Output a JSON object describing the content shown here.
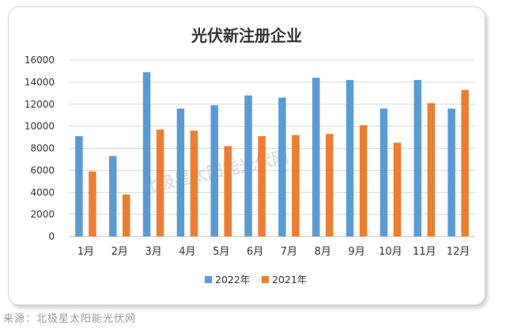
{
  "chart_data": {
    "type": "bar",
    "title": "光伏新注册企业",
    "categories": [
      "1月",
      "2月",
      "3月",
      "4月",
      "5月",
      "6月",
      "7月",
      "8月",
      "9月",
      "10月",
      "11月",
      "12月"
    ],
    "series": [
      {
        "name": "2022年",
        "color": "#5b9bd5",
        "values": [
          9100,
          7300,
          14900,
          11600,
          11900,
          12800,
          12600,
          14400,
          14200,
          11600,
          14200,
          11600
        ]
      },
      {
        "name": "2021年",
        "color": "#ed7d31",
        "values": [
          5900,
          3800,
          9700,
          9600,
          8200,
          9100,
          9200,
          9300,
          10100,
          8500,
          12100,
          13300
        ]
      }
    ],
    "yticks": [
      0,
      2000,
      4000,
      6000,
      8000,
      10000,
      12000,
      14000,
      16000
    ],
    "ylim": [
      0,
      16000
    ],
    "grid": true,
    "legend_position": "bottom"
  },
  "watermark": "北极星太阳能光伏网",
  "source_text": "来源：北极星太阳能光伏网"
}
